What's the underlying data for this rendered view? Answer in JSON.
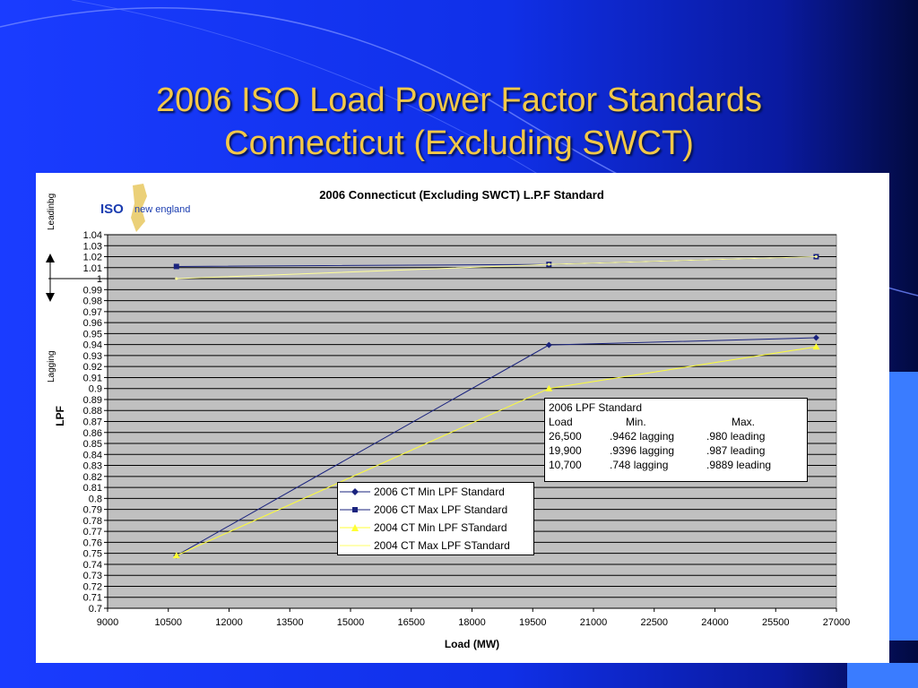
{
  "slide": {
    "title_line1": "2006 ISO Load Power Factor Standards",
    "title_line2": "Connecticut (Excluding SWCT)"
  },
  "logo": {
    "iso": "ISO",
    "text": "new england"
  },
  "side_labels": {
    "leading": "Leadinbg",
    "lagging": "Lagging"
  },
  "info_box": {
    "title": "2006 LPF Standard",
    "headers": [
      "Load",
      "Min.",
      "Max."
    ],
    "rows": [
      [
        "26,500",
        ".9462 lagging",
        ".980 leading"
      ],
      [
        "19,900",
        ".9396 lagging",
        ".987 leading"
      ],
      [
        "10,700",
        ".748 lagging",
        ".9889 leading"
      ]
    ]
  },
  "chart_data": {
    "type": "line",
    "title": "2006 Connecticut (Excluding SWCT) L.P.F Standard",
    "xlabel": "Load (MW)",
    "ylabel": "LPF",
    "xlim": [
      9000,
      27000
    ],
    "ylim": [
      0.7,
      1.04
    ],
    "x_ticks": [
      "9000",
      "10500",
      "12000",
      "13500",
      "15000",
      "16500",
      "18000",
      "19500",
      "21000",
      "22500",
      "24000",
      "25500",
      "27000"
    ],
    "y_ticks": [
      "0.7",
      "0.71",
      "0.72",
      "0.73",
      "0.74",
      "0.75",
      "0.76",
      "0.77",
      "0.78",
      "0.79",
      "0.8",
      "0.81",
      "0.82",
      "0.83",
      "0.84",
      "0.85",
      "0.86",
      "0.87",
      "0.88",
      "0.89",
      "0.9",
      "0.91",
      "0.92",
      "0.93",
      "0.94",
      "0.95",
      "0.96",
      "0.97",
      "0.98",
      "0.99",
      "1",
      "1.01",
      "1.02",
      "1.03",
      "1.04"
    ],
    "grid": true,
    "plot_background": "#c0c0c0",
    "series": [
      {
        "name": "2006 CT Min LPF Standard",
        "color": "#1a237e",
        "marker": "diamond",
        "x": [
          10700,
          19900,
          26500
        ],
        "y": [
          0.748,
          0.9396,
          0.9462
        ]
      },
      {
        "name": "2006 CT Max LPF Standard",
        "color": "#1a237e",
        "marker": "square",
        "x": [
          10700,
          19900,
          26500
        ],
        "y": [
          1.0111,
          1.013,
          1.02
        ]
      },
      {
        "name": "2004 CT Min LPF STandard",
        "color": "#ffff33",
        "marker": "triangle",
        "x": [
          10700,
          19900,
          26500
        ],
        "y": [
          0.748,
          0.9,
          0.938
        ]
      },
      {
        "name": "2004 CT Max LPF STandard",
        "color": "#ffff99",
        "marker": "none",
        "x": [
          10700,
          19900,
          26500
        ],
        "y": [
          1.0,
          1.013,
          1.02
        ]
      }
    ]
  }
}
